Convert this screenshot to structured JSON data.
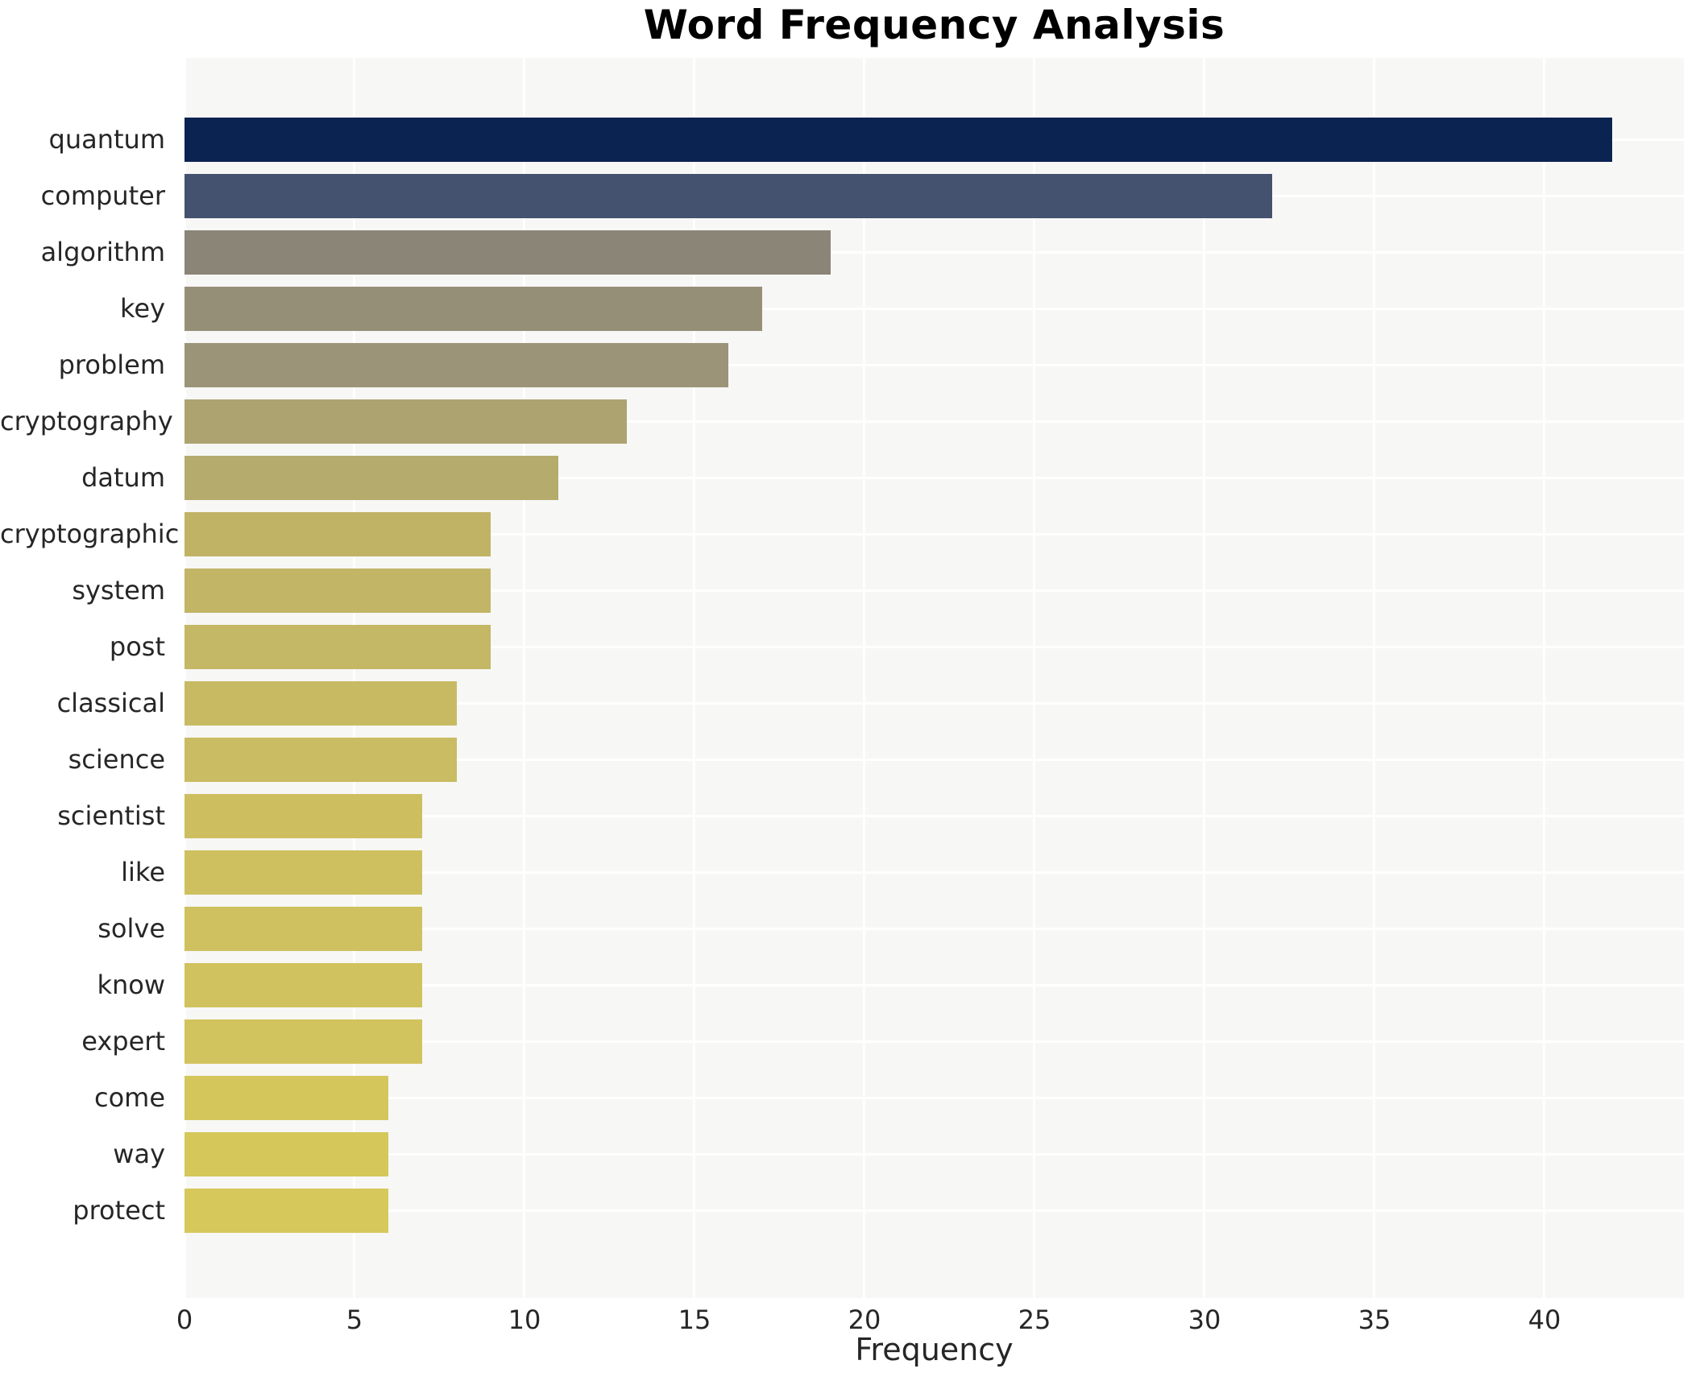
{
  "title": "Word Frequency Analysis",
  "chart_data": {
    "type": "bar",
    "orientation": "horizontal",
    "title": "Word Frequency Analysis",
    "xlabel": "Frequency",
    "ylabel": "",
    "categories": [
      "quantum",
      "computer",
      "algorithm",
      "key",
      "problem",
      "cryptography",
      "datum",
      "cryptographic",
      "system",
      "post",
      "classical",
      "science",
      "scientist",
      "like",
      "solve",
      "know",
      "expert",
      "come",
      "way",
      "protect"
    ],
    "values": [
      42,
      32,
      19,
      17,
      16,
      13,
      11,
      9,
      9,
      9,
      8,
      8,
      7,
      7,
      7,
      7,
      7,
      6,
      6,
      6
    ],
    "bar_colors": [
      "#0a2351",
      "#44516f",
      "#8a8577",
      "#968f77",
      "#9c9479",
      "#aca371",
      "#b5ab6d",
      "#c0b365",
      "#c2b566",
      "#c4b765",
      "#c8ba62",
      "#c9bc62",
      "#cdbf60",
      "#cec05f",
      "#cfc15f",
      "#d0c25e",
      "#d1c35d",
      "#d4c65b",
      "#d5c75a",
      "#d6c85a"
    ],
    "xlim": [
      0,
      44.1
    ],
    "xticks": [
      0,
      5,
      10,
      15,
      20,
      25,
      30,
      35,
      40
    ],
    "grid": true,
    "legend": null,
    "plot_bg": "#f7f7f6",
    "grid_color": "#ffffff",
    "text_color": "#262626",
    "title_color": "#000000"
  }
}
